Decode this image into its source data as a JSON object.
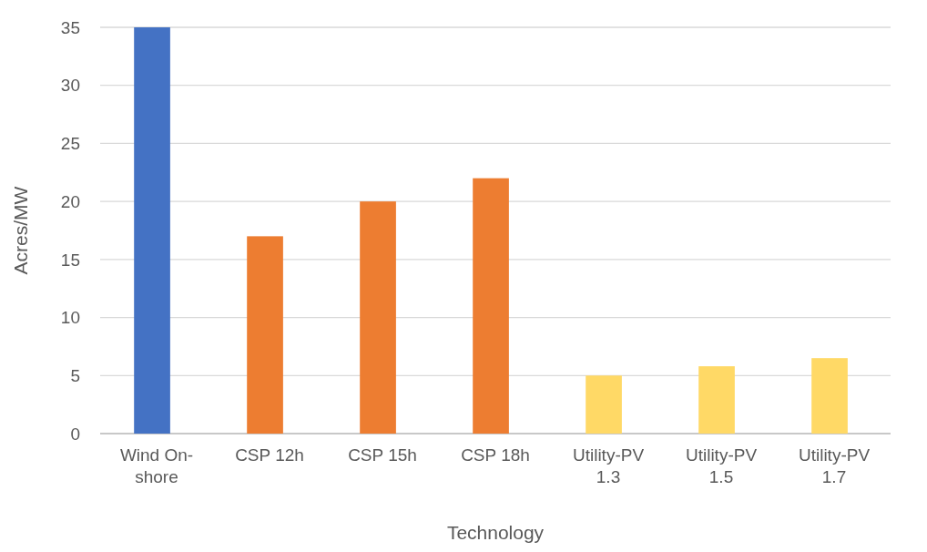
{
  "chart_data": {
    "type": "bar",
    "xlabel": "Technology",
    "ylabel": "Acres/MW",
    "categories": [
      "Wind On-shore",
      "CSP 12h",
      "CSP 15h",
      "CSP 18h",
      "Utility-PV 1.3",
      "Utility-PV 1.5",
      "Utility-PV 1.7"
    ],
    "values": [
      35,
      17,
      20,
      22,
      5,
      5.8,
      6.5
    ],
    "colors": [
      "#4472c4",
      "#ed7d31",
      "#ed7d31",
      "#ed7d31",
      "#ffd966",
      "#ffd966",
      "#ffd966"
    ],
    "ylim": [
      0,
      35
    ],
    "yticks": [
      0,
      5,
      10,
      15,
      20,
      25,
      30,
      35
    ],
    "grid": "y"
  }
}
